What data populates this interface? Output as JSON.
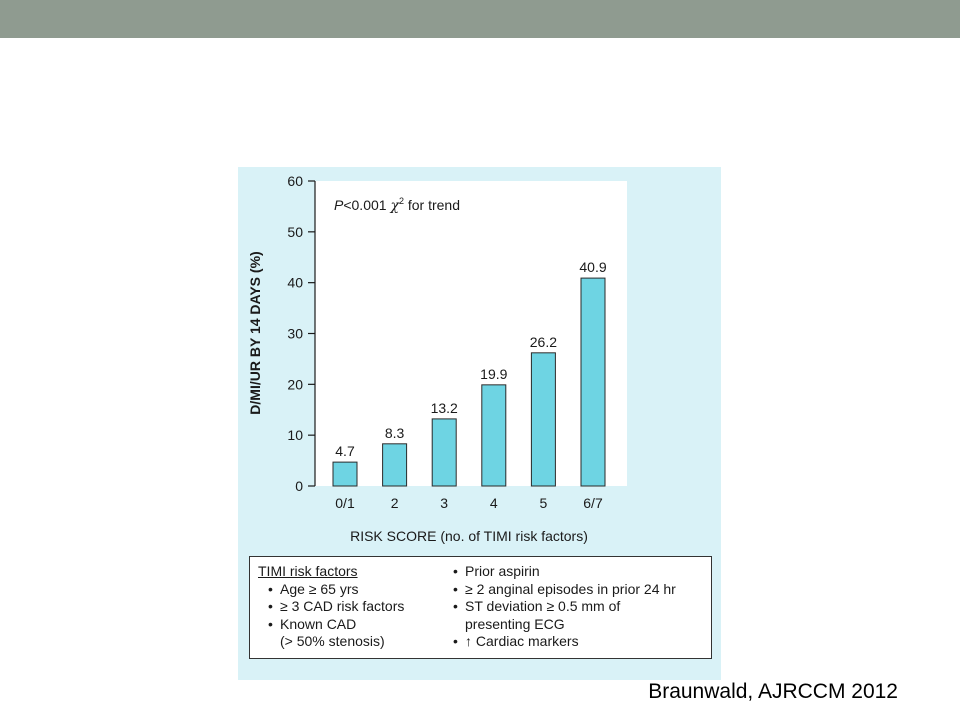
{
  "header": {
    "bar_color": "#8f9b90"
  },
  "chart_data": {
    "type": "bar",
    "categories": [
      "0/1",
      "2",
      "3",
      "4",
      "5",
      "6/7"
    ],
    "values": [
      4.7,
      8.3,
      13.2,
      19.9,
      26.2,
      40.9
    ],
    "value_labels": [
      "4.7",
      "8.3",
      "13.2",
      "19.9",
      "26.2",
      "40.9"
    ],
    "ylabel": "D/MI/UR BY 14 DAYS (%)",
    "xlabel": "RISK SCORE (no. of TIMI risk factors)",
    "ylim": [
      0,
      60
    ],
    "yticks": [
      0,
      10,
      20,
      30,
      40,
      50,
      60
    ],
    "annotation": {
      "p_italic": "P",
      "p_rest": "<0.001 ",
      "chi": "χ",
      "sup": "2",
      "tail": " for trend"
    },
    "bar_color": "#6ed4e3",
    "grid": false
  },
  "legend": {
    "title": "TIMI risk factors",
    "left_items": [
      "Age ≥ 65 yrs",
      "≥ 3 CAD risk factors",
      "Known CAD"
    ],
    "left_cont": "(> 50% stenosis)",
    "right_items": [
      "Prior aspirin",
      "≥ 2 anginal episodes in prior 24 hr",
      "ST deviation ≥ 0.5 mm of"
    ],
    "right_cont": "presenting ECG",
    "right_last": "↑ Cardiac markers"
  },
  "citation": "Braunwald, AJRCCM 2012"
}
